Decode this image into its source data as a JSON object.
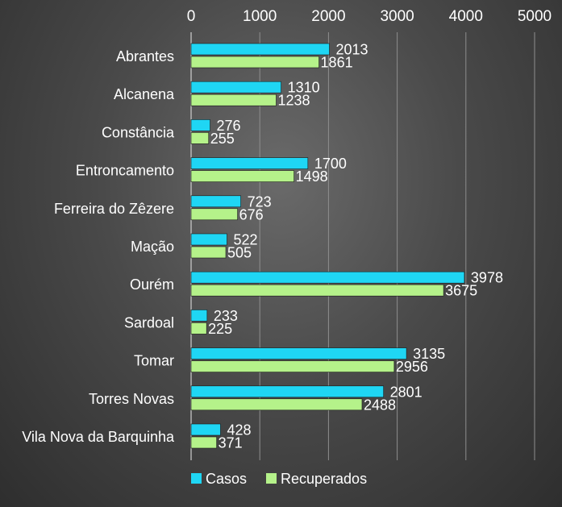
{
  "chart_data": {
    "type": "bar",
    "orientation": "horizontal",
    "categories": [
      "Abrantes",
      "Alcanena",
      "Constância",
      "Entroncamento",
      "Ferreira do Zêzere",
      "Mação",
      "Ourém",
      "Sardoal",
      "Tomar",
      "Torres Novas",
      "Vila Nova da Barquinha"
    ],
    "series": [
      {
        "name": "Casos",
        "color": "#1fd6f4",
        "values": [
          2013,
          1310,
          276,
          1700,
          723,
          522,
          3978,
          233,
          3135,
          2801,
          428
        ]
      },
      {
        "name": "Recuperados",
        "color": "#b5f28a",
        "values": [
          1861,
          1238,
          255,
          1498,
          676,
          505,
          3675,
          225,
          2956,
          2488,
          371
        ]
      }
    ],
    "xlim": [
      0,
      5000
    ],
    "x_ticks": [
      "0",
      "1000",
      "2000",
      "3000",
      "4000",
      "5000"
    ],
    "x_axis_position": "top",
    "grid": true,
    "legend_position": "bottom-left",
    "title": "",
    "xlabel": "",
    "ylabel": ""
  }
}
